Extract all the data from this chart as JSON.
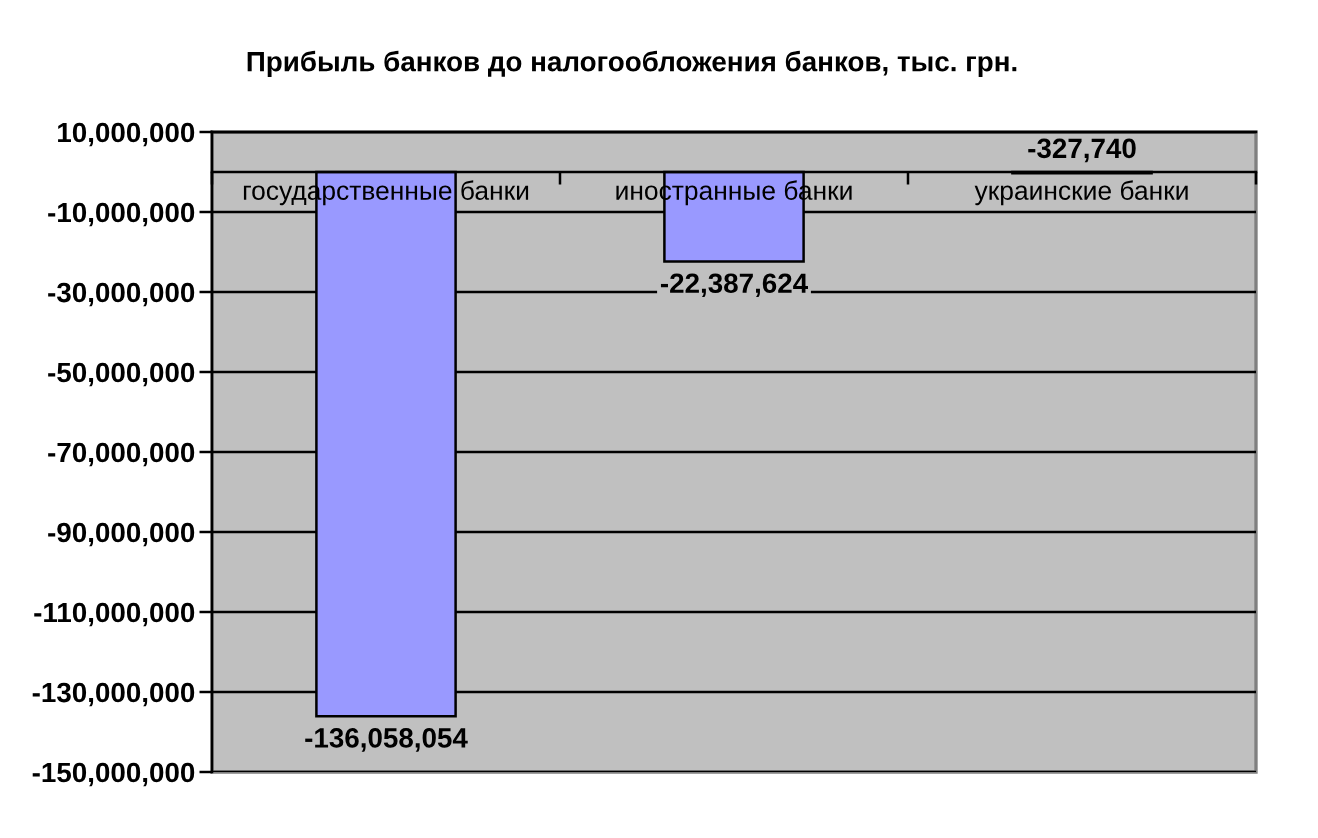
{
  "chart_data": {
    "type": "bar",
    "title": "Прибыль банков до налогообложения банков, тыс. грн.",
    "categories": [
      "государственные банки",
      "иностранные банки",
      "украинские банки"
    ],
    "values": [
      -136058054,
      -22387624,
      -327740
    ],
    "color": "#9999ff",
    "value_labels": [
      "-136,058,054",
      "-22,387,624",
      "-327,740"
    ],
    "ylim": [
      -150000000,
      10000000
    ],
    "yticks": [
      {
        "value": 10000000,
        "label": "10,000,000"
      },
      {
        "value": -10000000,
        "label": "-10,000,000"
      },
      {
        "value": -30000000,
        "label": "-30,000,000"
      },
      {
        "value": -50000000,
        "label": "-50,000,000"
      },
      {
        "value": -70000000,
        "label": "-70,000,000"
      },
      {
        "value": -90000000,
        "label": "-90,000,000"
      },
      {
        "value": -110000000,
        "label": "-110,000,000"
      },
      {
        "value": -130000000,
        "label": "-130,000,000"
      },
      {
        "value": -150000000,
        "label": "-150,000,000"
      }
    ],
    "grid": "y"
  }
}
